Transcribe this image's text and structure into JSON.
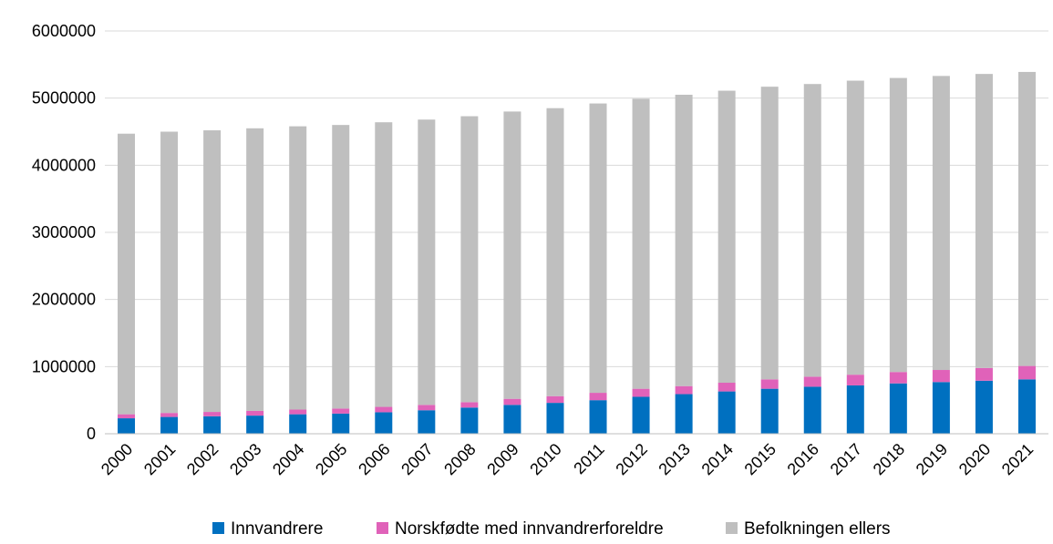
{
  "chart_data": {
    "type": "bar",
    "stacked": true,
    "categories": [
      "2000",
      "2001",
      "2002",
      "2003",
      "2004",
      "2005",
      "2006",
      "2007",
      "2008",
      "2009",
      "2010",
      "2011",
      "2012",
      "2013",
      "2014",
      "2015",
      "2016",
      "2017",
      "2018",
      "2019",
      "2020",
      "2021"
    ],
    "series": [
      {
        "name": "Innvandrere",
        "color": "#0070C0",
        "values": [
          230000,
          250000,
          260000,
          270000,
          290000,
          300000,
          320000,
          350000,
          390000,
          430000,
          460000,
          500000,
          550000,
          590000,
          630000,
          670000,
          700000,
          720000,
          750000,
          770000,
          790000,
          810000
        ]
      },
      {
        "name": "Norskfødte med innvandrerforeldre",
        "color": "#E062B9",
        "values": [
          60000,
          60000,
          65000,
          70000,
          70000,
          75000,
          80000,
          80000,
          80000,
          90000,
          100000,
          110000,
          120000,
          120000,
          130000,
          140000,
          150000,
          160000,
          170000,
          180000,
          190000,
          200000
        ]
      },
      {
        "name": "Befolkningen ellers",
        "color": "#BFBFBF",
        "values": [
          4180000,
          4190000,
          4195000,
          4210000,
          4220000,
          4225000,
          4240000,
          4250000,
          4260000,
          4280000,
          4290000,
          4310000,
          4320000,
          4340000,
          4350000,
          4360000,
          4360000,
          4380000,
          4380000,
          4380000,
          4380000,
          4380000
        ]
      }
    ],
    "title": "",
    "xlabel": "",
    "ylabel": "",
    "ylim": [
      0,
      6000000
    ],
    "yticks": [
      "0",
      "1000000",
      "2000000",
      "3000000",
      "4000000",
      "5000000",
      "6000000"
    ],
    "grid": true,
    "legend_position": "bottom"
  }
}
